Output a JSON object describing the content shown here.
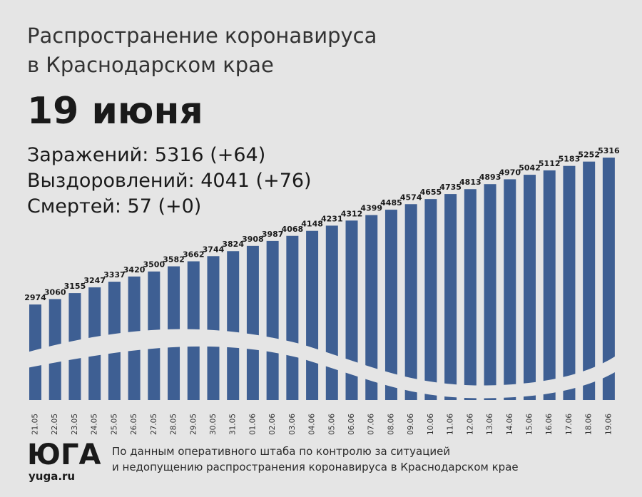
{
  "header": {
    "title_line1": "Распространение коронавируса",
    "title_line2": "в Краснодарском крае",
    "date": "19 июня"
  },
  "stats": {
    "infected": "Заражений: 5316 (+64)",
    "recovered": "Выздоровлений: 4041 (+76)",
    "deaths": "Смертей: 57 (+0)"
  },
  "footer": {
    "source_line1": "По данным оперативного штаба по контролю за ситуацией",
    "source_line2": "и недопущению распространения коронавируса в Краснодарском крае",
    "logo_text": "ЮГА",
    "logo_url": "yuga.ru"
  },
  "colors": {
    "bar": "#3e5f93",
    "background": "#e5e5e5",
    "wave": "#e5e5e5"
  },
  "chart_data": {
    "type": "bar",
    "title": "",
    "xlabel": "",
    "ylabel": "",
    "ylim": [
      0,
      5400
    ],
    "grid": false,
    "categories": [
      "21.05",
      "22.05",
      "23.05",
      "24.05",
      "25.05",
      "26.05",
      "27.05",
      "28.05",
      "29.05",
      "30.05",
      "31.05",
      "01.06",
      "02.06",
      "03.06",
      "04.06",
      "05.06",
      "06.06",
      "07.06",
      "08.06",
      "09.06",
      "10.06",
      "11.06",
      "12.06",
      "13.06",
      "14.06",
      "15.06",
      "16.06",
      "17.06",
      "18.06",
      "19.06"
    ],
    "series": [
      {
        "values": [
          2974,
          3060,
          3155,
          3247,
          3337,
          3420,
          3500,
          3582,
          3662,
          3744,
          3824,
          3908,
          3987,
          4068,
          4148,
          4231,
          4312,
          4399,
          4485,
          4574,
          4655,
          4735,
          4813,
          4893,
          4970,
          5042,
          5112,
          5183,
          5252,
          5316
        ]
      }
    ]
  }
}
